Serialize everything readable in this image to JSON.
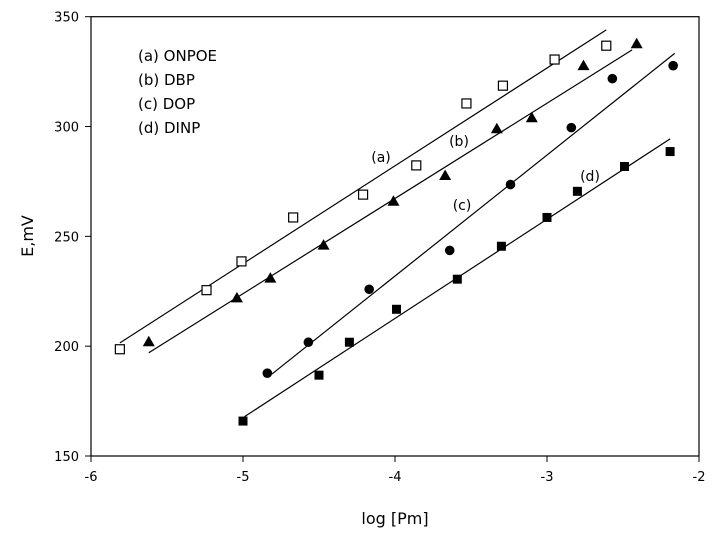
{
  "chart_data": {
    "type": "scatter",
    "xlabel": "log [Pm]",
    "ylabel": "E,mV",
    "xlim": [
      -6,
      -2
    ],
    "ylim": [
      150,
      350
    ],
    "xticks": [
      -6,
      -5,
      -4,
      -3,
      -2
    ],
    "yticks": [
      150,
      200,
      250,
      300,
      350
    ],
    "grid": false,
    "legend_position": "top-left",
    "legend": [
      "(a) ONPOE",
      "(b) DBP",
      "(c) DOP",
      "(d) DINP"
    ],
    "series": [
      {
        "name": "(a) ONPOE",
        "label": "(a)",
        "marker": "open-square",
        "x": [
          -5.81,
          -5.24,
          -5.01,
          -4.67,
          -4.21,
          -3.86,
          -3.53,
          -3.29,
          -2.95,
          -2.61
        ],
        "y": [
          198.6,
          225.5,
          238.6,
          258.6,
          269.0,
          282.3,
          310.5,
          318.6,
          330.5,
          336.8
        ],
        "fit": {
          "x": [
            -5.81,
            -2.61
          ],
          "y": [
            201.5,
            344.0
          ]
        }
      },
      {
        "name": "(b) DBP",
        "label": "(b)",
        "marker": "filled-triangle",
        "x": [
          -5.62,
          -5.04,
          -4.82,
          -4.47,
          -4.01,
          -3.67,
          -3.33,
          -3.1,
          -2.76,
          -2.41
        ],
        "y": [
          202.0,
          222.0,
          231.0,
          246.0,
          266.0,
          277.7,
          299.0,
          304.0,
          327.7,
          337.7
        ],
        "fit": {
          "x": [
            -5.62,
            -2.44
          ],
          "y": [
            197.0,
            334.9
          ]
        }
      },
      {
        "name": "(c) DOP",
        "label": "(c)",
        "marker": "filled-circle",
        "x": [
          -4.84,
          -4.57,
          -4.17,
          -3.64,
          -3.24,
          -2.84,
          -2.57,
          -2.17
        ],
        "y": [
          187.7,
          201.8,
          225.9,
          243.6,
          273.6,
          299.5,
          321.8,
          327.7
        ],
        "fit": {
          "x": [
            -4.81,
            -2.16
          ],
          "y": [
            187.3,
            333.3
          ]
        }
      },
      {
        "name": "(d) DINP",
        "label": "(d)",
        "marker": "filled-square",
        "x": [
          -5.0,
          -4.5,
          -4.3,
          -3.99,
          -3.59,
          -3.3,
          -3.0,
          -2.8,
          -2.49,
          -2.19
        ],
        "y": [
          165.9,
          186.8,
          201.8,
          216.8,
          230.5,
          245.5,
          258.6,
          270.5,
          281.8,
          288.6
        ],
        "fit": {
          "x": [
            -4.99,
            -2.19
          ],
          "y": [
            167.9,
            294.4
          ]
        }
      }
    ]
  }
}
